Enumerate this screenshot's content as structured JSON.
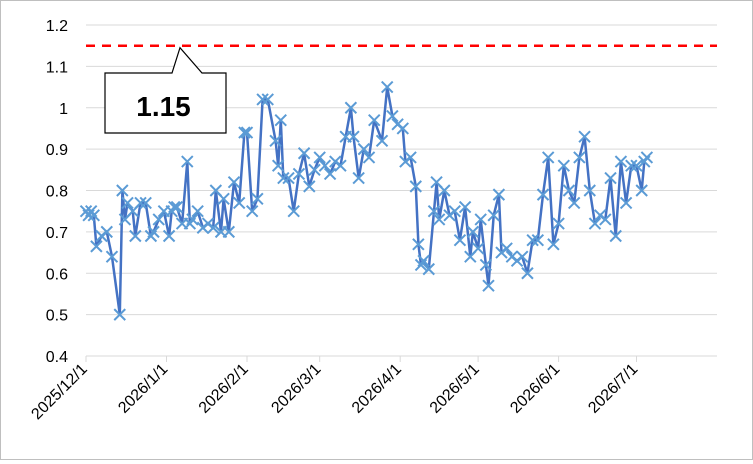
{
  "chart_data": {
    "type": "line",
    "title": "",
    "xlabel": "",
    "ylabel": "",
    "ylim": [
      0.4,
      1.2
    ],
    "yticks": [
      "0.4",
      "0.5",
      "0.6",
      "0.7",
      "0.8",
      "0.9",
      "1",
      "1.1",
      "1.2"
    ],
    "x_range": [
      "2025/12/1",
      "2026/8/1"
    ],
    "xticks": [
      "2025/12/1",
      "2026/1/1",
      "2026/2/1",
      "2026/3/1",
      "2026/4/1",
      "2026/5/1",
      "2026/6/1",
      "2026/7/1"
    ],
    "grid": "horizontal",
    "reference_line": {
      "value": 1.15,
      "label": "1.15",
      "color": "#ff0000",
      "style": "dashed"
    },
    "series": [
      {
        "color": "#4472c4",
        "marker_color": "#5b9bd5",
        "marker": "x",
        "points": [
          [
            "2025/12/1",
            0.75
          ],
          [
            "2025/12/2",
            0.74
          ],
          [
            "2025/12/3",
            0.75
          ],
          [
            "2025/12/4",
            0.74
          ],
          [
            "2025/12/5",
            0.665
          ],
          [
            "2025/12/7",
            0.69
          ],
          [
            "2025/12/9",
            0.7
          ],
          [
            "2025/12/11",
            0.64
          ],
          [
            "2025/12/14",
            0.5
          ],
          [
            "2025/12/15",
            0.8
          ],
          [
            "2025/12/16",
            0.73
          ],
          [
            "2025/12/17",
            0.77
          ],
          [
            "2025/12/19",
            0.75
          ],
          [
            "2025/12/20",
            0.69
          ],
          [
            "2025/12/22",
            0.77
          ],
          [
            "2025/12/24",
            0.77
          ],
          [
            "2025/12/26",
            0.69
          ],
          [
            "2025/12/27",
            0.7
          ],
          [
            "2025/12/29",
            0.73
          ],
          [
            "2025/12/31",
            0.75
          ],
          [
            "2026/1/2",
            0.69
          ],
          [
            "2026/1/3",
            0.75
          ],
          [
            "2026/1/4",
            0.76
          ],
          [
            "2026/1/5",
            0.76
          ],
          [
            "2026/1/7",
            0.72
          ],
          [
            "2026/1/9",
            0.87
          ],
          [
            "2026/1/10",
            0.72
          ],
          [
            "2026/1/11",
            0.73
          ],
          [
            "2026/1/13",
            0.75
          ],
          [
            "2026/1/15",
            0.71
          ],
          [
            "2026/1/17",
            0.72
          ],
          [
            "2026/1/19",
            0.71
          ],
          [
            "2026/1/20",
            0.8
          ],
          [
            "2026/1/22",
            0.7
          ],
          [
            "2026/1/23",
            0.78
          ],
          [
            "2026/1/25",
            0.7
          ],
          [
            "2026/1/27",
            0.82
          ],
          [
            "2026/1/29",
            0.77
          ],
          [
            "2026/1/31",
            0.94
          ],
          [
            "2026/2/1",
            0.94
          ],
          [
            "2026/2/3",
            0.75
          ],
          [
            "2026/2/5",
            0.78
          ],
          [
            "2026/2/7",
            1.02
          ],
          [
            "2026/2/9",
            1.02
          ],
          [
            "2026/2/12",
            0.92
          ],
          [
            "2026/2/13",
            0.86
          ],
          [
            "2026/2/14",
            0.97
          ],
          [
            "2026/2/15",
            0.83
          ],
          [
            "2026/2/17",
            0.83
          ],
          [
            "2026/2/19",
            0.75
          ],
          [
            "2026/2/21",
            0.84
          ],
          [
            "2026/2/23",
            0.89
          ],
          [
            "2026/2/25",
            0.81
          ],
          [
            "2026/2/27",
            0.85
          ],
          [
            "2026/3/1",
            0.88
          ],
          [
            "2026/3/3",
            0.86
          ],
          [
            "2026/3/5",
            0.84
          ],
          [
            "2026/3/7",
            0.87
          ],
          [
            "2026/3/9",
            0.86
          ],
          [
            "2026/3/11",
            0.93
          ],
          [
            "2026/3/13",
            1.0
          ],
          [
            "2026/3/14",
            0.93
          ],
          [
            "2026/3/16",
            0.83
          ],
          [
            "2026/3/18",
            0.9
          ],
          [
            "2026/3/20",
            0.88
          ],
          [
            "2026/3/22",
            0.97
          ],
          [
            "2026/3/25",
            0.92
          ],
          [
            "2026/3/27",
            1.05
          ],
          [
            "2026/3/29",
            0.98
          ],
          [
            "2026/3/31",
            0.96
          ],
          [
            "2026/4/2",
            0.95
          ],
          [
            "2026/4/3",
            0.87
          ],
          [
            "2026/4/5",
            0.88
          ],
          [
            "2026/4/7",
            0.81
          ],
          [
            "2026/4/8",
            0.67
          ],
          [
            "2026/4/9",
            0.62
          ],
          [
            "2026/4/10",
            0.63
          ],
          [
            "2026/4/12",
            0.61
          ],
          [
            "2026/4/14",
            0.75
          ],
          [
            "2026/4/15",
            0.82
          ],
          [
            "2026/4/16",
            0.73
          ],
          [
            "2026/4/18",
            0.8
          ],
          [
            "2026/4/20",
            0.74
          ],
          [
            "2026/4/22",
            0.75
          ],
          [
            "2026/4/24",
            0.68
          ],
          [
            "2026/4/26",
            0.76
          ],
          [
            "2026/4/28",
            0.64
          ],
          [
            "2026/4/29",
            0.7
          ],
          [
            "2026/5/1",
            0.66
          ],
          [
            "2026/5/2",
            0.73
          ],
          [
            "2026/5/4",
            0.62
          ],
          [
            "2026/5/5",
            0.57
          ],
          [
            "2026/5/7",
            0.74
          ],
          [
            "2026/5/9",
            0.79
          ],
          [
            "2026/5/10",
            0.65
          ],
          [
            "2026/5/12",
            0.66
          ],
          [
            "2026/5/14",
            0.64
          ],
          [
            "2026/5/16",
            0.63
          ],
          [
            "2026/5/18",
            0.64
          ],
          [
            "2026/5/20",
            0.6
          ],
          [
            "2026/5/22",
            0.68
          ],
          [
            "2026/5/24",
            0.68
          ],
          [
            "2026/5/26",
            0.79
          ],
          [
            "2026/5/28",
            0.88
          ],
          [
            "2026/5/30",
            0.67
          ],
          [
            "2026/6/1",
            0.72
          ],
          [
            "2026/6/3",
            0.86
          ],
          [
            "2026/6/5",
            0.8
          ],
          [
            "2026/6/7",
            0.77
          ],
          [
            "2026/6/9",
            0.88
          ],
          [
            "2026/6/11",
            0.93
          ],
          [
            "2026/6/13",
            0.8
          ],
          [
            "2026/6/15",
            0.72
          ],
          [
            "2026/6/17",
            0.74
          ],
          [
            "2026/6/19",
            0.73
          ],
          [
            "2026/6/21",
            0.83
          ],
          [
            "2026/6/23",
            0.69
          ],
          [
            "2026/6/25",
            0.87
          ],
          [
            "2026/6/27",
            0.77
          ],
          [
            "2026/6/29",
            0.86
          ],
          [
            "2026/7/1",
            0.86
          ],
          [
            "2026/7/3",
            0.8
          ],
          [
            "2026/7/4",
            0.87
          ],
          [
            "2026/7/5",
            0.88
          ]
        ]
      }
    ]
  }
}
